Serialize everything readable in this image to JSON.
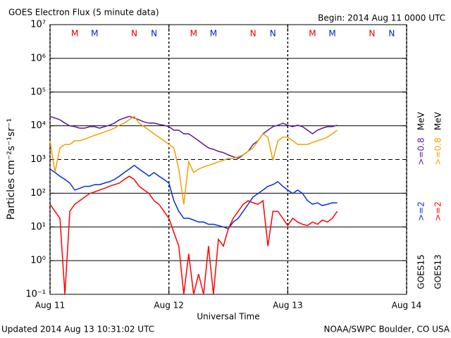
{
  "chart_data": {
    "type": "line",
    "title": "GOES Electron Flux (5 minute data)",
    "subtitle": "Begin: 2014 Aug 11 0000 UTC",
    "x_label": "Universal Time",
    "y_label": "Particles cm⁻²s⁻¹sr⁻¹",
    "footer_left": "Updated 2014 Aug 13 10:31:02 UTC",
    "footer_right": "NOAA/SWPC Boulder, CO USA",
    "log_y": true,
    "xlim": [
      0,
      72
    ],
    "xticks": [
      {
        "value": 0,
        "label": "Aug 11"
      },
      {
        "value": 24,
        "label": "Aug 12"
      },
      {
        "value": 48,
        "label": "Aug 13"
      },
      {
        "value": 72,
        "label": "Aug 14"
      }
    ],
    "ylim": [
      0.1,
      10000000
    ],
    "yticks": [
      {
        "value": 0.1,
        "label": "10⁻¹"
      },
      {
        "value": 1,
        "label": "10⁰"
      },
      {
        "value": 10,
        "label": "10¹"
      },
      {
        "value": 100,
        "label": "10²"
      },
      {
        "value": 1000,
        "label": "10³"
      },
      {
        "value": 10000,
        "label": "10⁴"
      },
      {
        "value": 100000,
        "label": "10⁵"
      },
      {
        "value": 1000000,
        "label": "10⁶"
      },
      {
        "value": 10000000,
        "label": "10⁷"
      }
    ],
    "grid": true,
    "threshold": 1000,
    "legend_units": "MeV",
    "markers": [
      {
        "label": "M",
        "color": "#e00000",
        "x": 5
      },
      {
        "label": "M",
        "color": "#0020d0",
        "x": 9
      },
      {
        "label": "N",
        "color": "#e00000",
        "x": 17
      },
      {
        "label": "N",
        "color": "#0020d0",
        "x": 21
      },
      {
        "label": "M",
        "color": "#e00000",
        "x": 29
      },
      {
        "label": "M",
        "color": "#0020d0",
        "x": 33
      },
      {
        "label": "N",
        "color": "#e00000",
        "x": 41
      },
      {
        "label": "N",
        "color": "#0020d0",
        "x": 45
      },
      {
        "label": "M",
        "color": "#e00000",
        "x": 53
      },
      {
        "label": "M",
        "color": "#0020d0",
        "x": 57
      },
      {
        "label": "N",
        "color": "#e00000",
        "x": 65
      },
      {
        "label": "N",
        "color": "#0020d0",
        "x": 69
      }
    ],
    "x": [
      0,
      1,
      2,
      3,
      4,
      5,
      6,
      7,
      8,
      9,
      10,
      11,
      12,
      13,
      14,
      15,
      16,
      17,
      18,
      19,
      20,
      21,
      22,
      23,
      24,
      25,
      26,
      27,
      28,
      29,
      30,
      31,
      32,
      33,
      34,
      35,
      36,
      37,
      38,
      39,
      40,
      41,
      42,
      43,
      44,
      45,
      46,
      47,
      48,
      49,
      50,
      51,
      52,
      53,
      54,
      55,
      56,
      57,
      58
    ],
    "groups": [
      {
        "name": "GOES15",
        "series": [
          {
            "name": ">=2",
            "color": "#0030e0",
            "values": [
              520,
              410,
              320,
              255,
              200,
              124,
              140,
              160,
              160,
              180,
              180,
              200,
              220,
              255,
              320,
              410,
              520,
              670,
              520,
              410,
              320,
              410,
              320,
              255,
              200,
              60,
              29,
              18,
              18,
              16,
              14,
              14,
              12,
              12,
              11,
              10,
              8.8,
              14,
              18,
              29,
              47,
              77,
              98,
              124,
              160,
              180,
              220,
              160,
              124,
              98,
              124,
              98,
              60,
              47,
              52,
              43,
              47,
              52,
              52
            ]
          },
          {
            "name": ">=0.8",
            "color": "#5a1a9a",
            "values": [
              19000,
              17000,
              15000,
              12000,
              10000,
              9400,
              8500,
              8500,
              9400,
              9400,
              8500,
              9400,
              10400,
              12000,
              15000,
              17000,
              19000,
              17000,
              15000,
              13000,
              12000,
              12000,
              11000,
              10400,
              9400,
              7400,
              7400,
              5800,
              5800,
              4600,
              3600,
              2800,
              2200,
              2000,
              1750,
              1600,
              1370,
              1200,
              1080,
              1370,
              1750,
              2800,
              3600,
              5800,
              7400,
              9400,
              10400,
              11900,
              10400,
              9400,
              10400,
              9400,
              7400,
              5800,
              7400,
              8500,
              9400,
              9400,
              10400
            ]
          }
        ]
      },
      {
        "name": "GOES13",
        "series": [
          {
            "name": ">=2",
            "color": "#ff0000",
            "values": [
              47,
              29,
              18,
              0.1,
              29,
              47,
              60,
              77,
              98,
              110,
              124,
              140,
              160,
              180,
              200,
              255,
              320,
              255,
              160,
              124,
              98,
              60,
              47,
              29,
              18,
              6.9,
              2.7,
              0.1,
              1.6,
              0.1,
              0.4,
              0.1,
              2.7,
              0.1,
              4.3,
              2.7,
              8.8,
              18,
              29,
              47,
              60,
              52,
              47,
              60,
              2.7,
              29,
              29,
              18,
              11,
              18,
              14,
              12,
              11,
              14,
              12,
              16,
              14,
              18,
              29
            ]
          },
          {
            "name": ">=0.8",
            "color": "#f0a000",
            "values": [
              3600,
              420,
              2200,
              2800,
              2800,
              3600,
              3600,
              4000,
              4600,
              5200,
              5800,
              6600,
              7400,
              8500,
              10400,
              12000,
              15200,
              19000,
              11900,
              9400,
              7400,
              5800,
              4600,
              3600,
              2800,
              2200,
              520,
              47,
              850,
              410,
              520,
              600,
              670,
              750,
              850,
              950,
              1080,
              1080,
              1200,
              1370,
              1750,
              2200,
              3600,
              5800,
              4600,
              940,
              3600,
              4600,
              4600,
              3600,
              2800,
              2800,
              2800,
              3200,
              3600,
              4000,
              4600,
              5800,
              7400
            ]
          }
        ]
      }
    ]
  }
}
